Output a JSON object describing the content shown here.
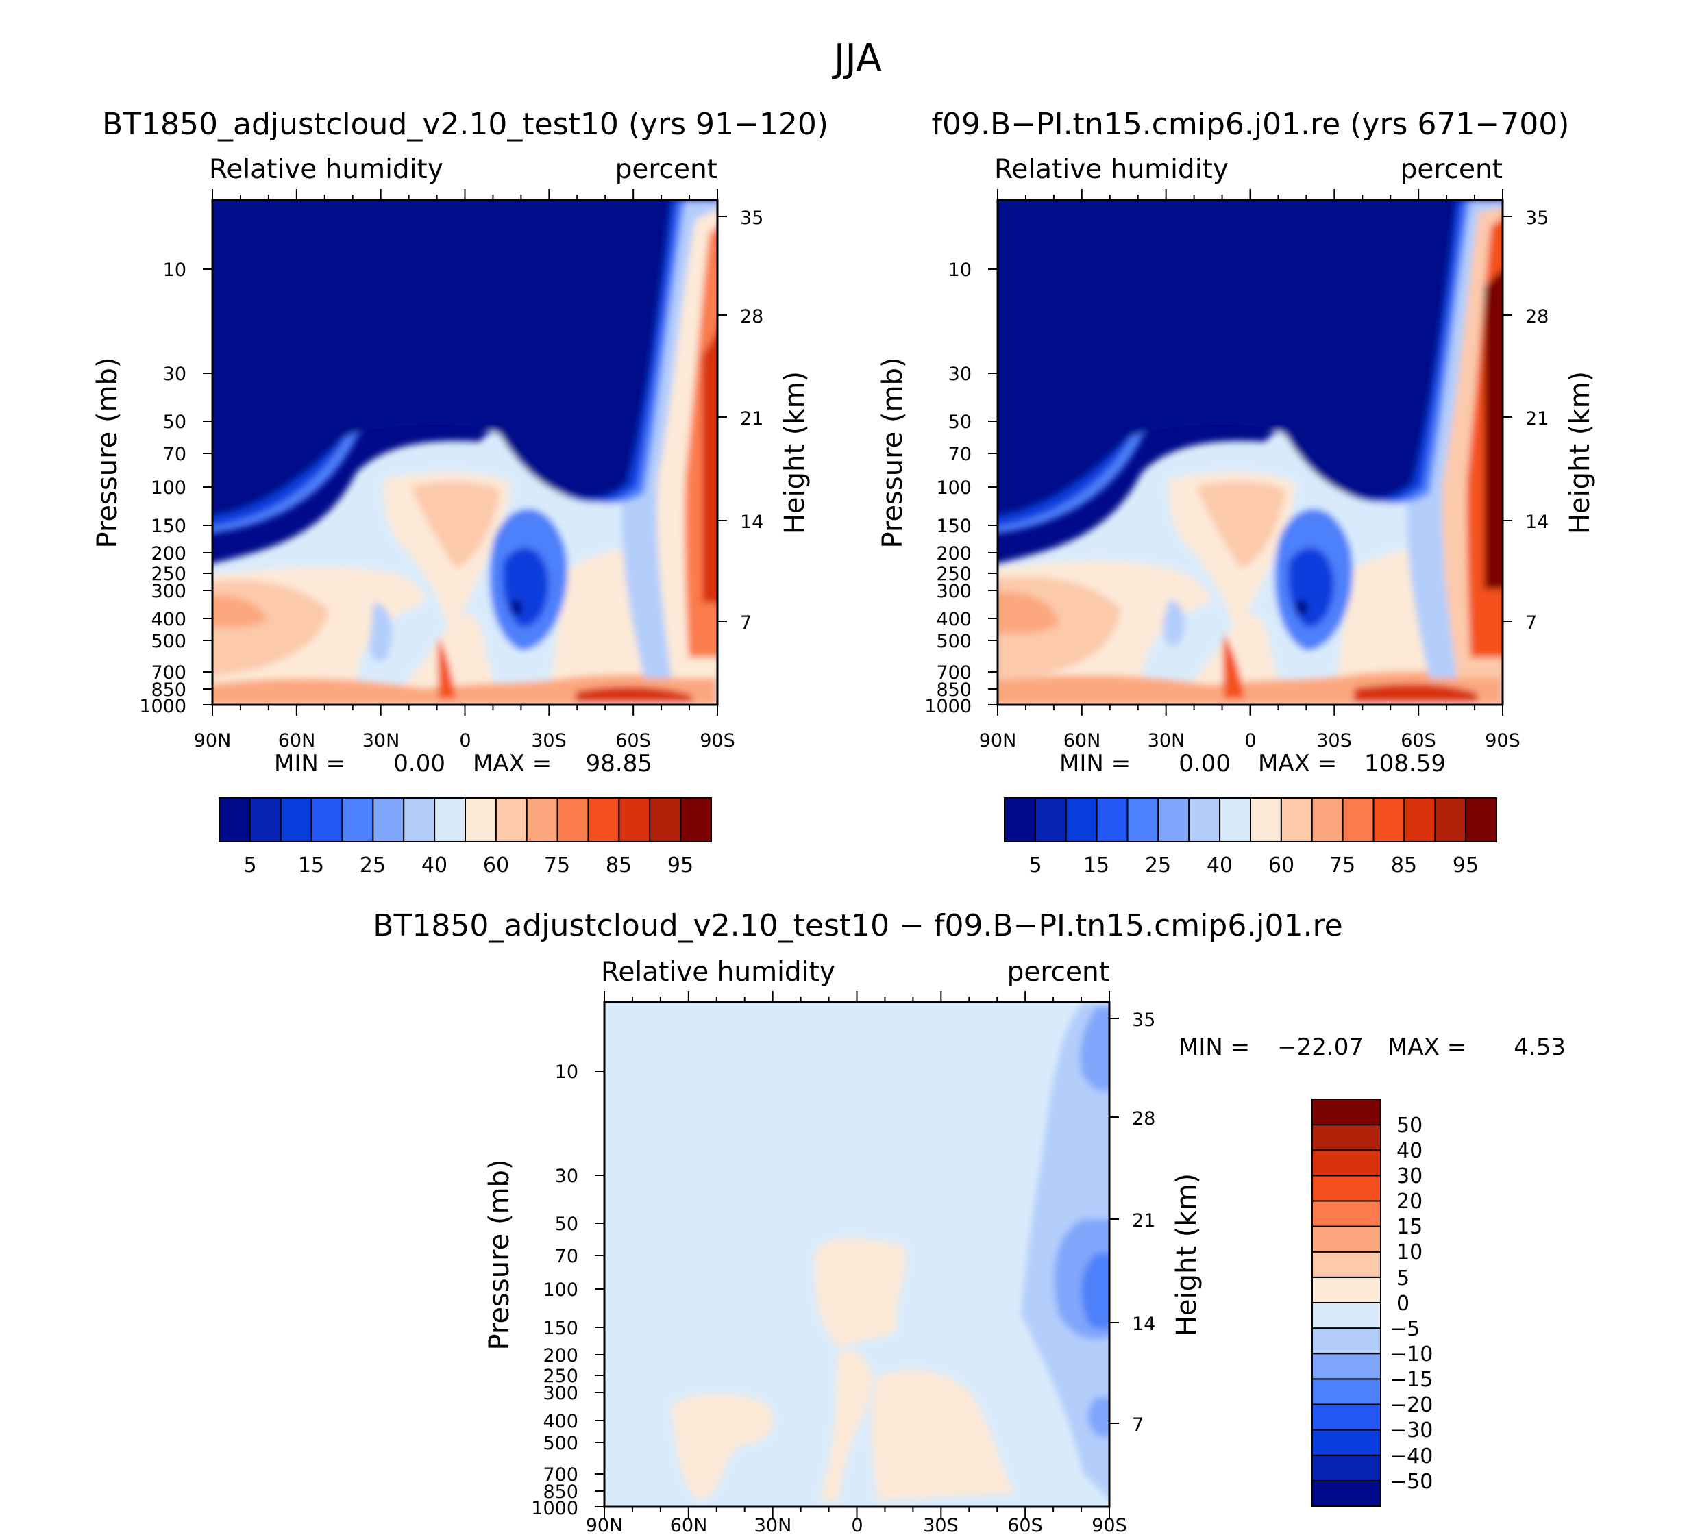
{
  "figure": {
    "title": "JJA"
  },
  "colors": {
    "rh_levels": [
      "#000a8a",
      "#0622b0",
      "#0a3ddd",
      "#2458f4",
      "#4d80fb",
      "#80a6fb",
      "#b3cdfb",
      "#d9ebfb",
      "#fde9d7",
      "#fcc9ab",
      "#fca77e",
      "#fb7b4e",
      "#f4511f",
      "#d8330c",
      "#b0230a",
      "#7c0303"
    ],
    "diff_levels": [
      "#000a8a",
      "#0622b0",
      "#0a3ddd",
      "#2458f4",
      "#4d80fb",
      "#80a6fb",
      "#b3cdfb",
      "#d9ebfb",
      "#fde9d7",
      "#fcc9ab",
      "#fca77e",
      "#fb7b4e",
      "#f4511f",
      "#d8330c",
      "#b0230a",
      "#7c0303"
    ]
  },
  "chart_data": [
    {
      "type": "heatmap",
      "title": "BT1850_adjustcloud_v2.10_test10 (yrs 91-120)",
      "left_label": "Relative humidity",
      "right_label": "percent",
      "ylabel": "Pressure (mb)",
      "ylabel_right": "Height (km)",
      "x_ticks": [
        "90N",
        "60N",
        "30N",
        "0",
        "30S",
        "60S",
        "90S"
      ],
      "y_ticks": [
        "10",
        "30",
        "50",
        "70",
        "100",
        "150",
        "200",
        "250",
        "300",
        "400",
        "500",
        "700",
        "850",
        "1000"
      ],
      "height_ticks": [
        "35",
        "28",
        "21",
        "14",
        "7"
      ],
      "stats": {
        "min_label": "MIN =",
        "min": "0.00",
        "max_label": "MAX =",
        "max": "98.85"
      },
      "colorbar": {
        "orientation": "horizontal",
        "labels": [
          "5",
          "15",
          "25",
          "40",
          "60",
          "75",
          "85",
          "95"
        ]
      }
    },
    {
      "type": "heatmap",
      "title": "f09.B-PI.tn15.cmip6.j01.re (yrs 671-700)",
      "left_label": "Relative humidity",
      "right_label": "percent",
      "ylabel": "Pressure (mb)",
      "ylabel_right": "Height (km)",
      "x_ticks": [
        "90N",
        "60N",
        "30N",
        "0",
        "30S",
        "60S",
        "90S"
      ],
      "y_ticks": [
        "10",
        "30",
        "50",
        "70",
        "100",
        "150",
        "200",
        "250",
        "300",
        "400",
        "500",
        "700",
        "850",
        "1000"
      ],
      "height_ticks": [
        "35",
        "28",
        "21",
        "14",
        "7"
      ],
      "stats": {
        "min_label": "MIN =",
        "min": "0.00",
        "max_label": "MAX =",
        "max": "108.59"
      },
      "colorbar": {
        "orientation": "horizontal",
        "labels": [
          "5",
          "15",
          "25",
          "40",
          "60",
          "75",
          "85",
          "95"
        ]
      }
    },
    {
      "type": "heatmap",
      "title": "BT1850_adjustcloud_v2.10_test10 - f09.B-PI.tn15.cmip6.j01.re",
      "left_label": "Relative humidity",
      "right_label": "percent",
      "ylabel": "Pressure (mb)",
      "ylabel_right": "Height (km)",
      "x_ticks": [
        "90N",
        "60N",
        "30N",
        "0",
        "30S",
        "60S",
        "90S"
      ],
      "y_ticks": [
        "10",
        "30",
        "50",
        "70",
        "100",
        "150",
        "200",
        "250",
        "300",
        "400",
        "500",
        "700",
        "850",
        "1000"
      ],
      "height_ticks": [
        "35",
        "28",
        "21",
        "14",
        "7"
      ],
      "stats": {
        "min_label": "MIN =",
        "min": "-22.07",
        "max_label": "MAX =",
        "max": "4.53"
      },
      "colorbar": {
        "orientation": "vertical",
        "labels": [
          "50",
          "40",
          "30",
          "20",
          "15",
          "10",
          "5",
          "0",
          "-5",
          "-10",
          "-15",
          "-20",
          "-30",
          "-40",
          "-50"
        ]
      }
    }
  ]
}
